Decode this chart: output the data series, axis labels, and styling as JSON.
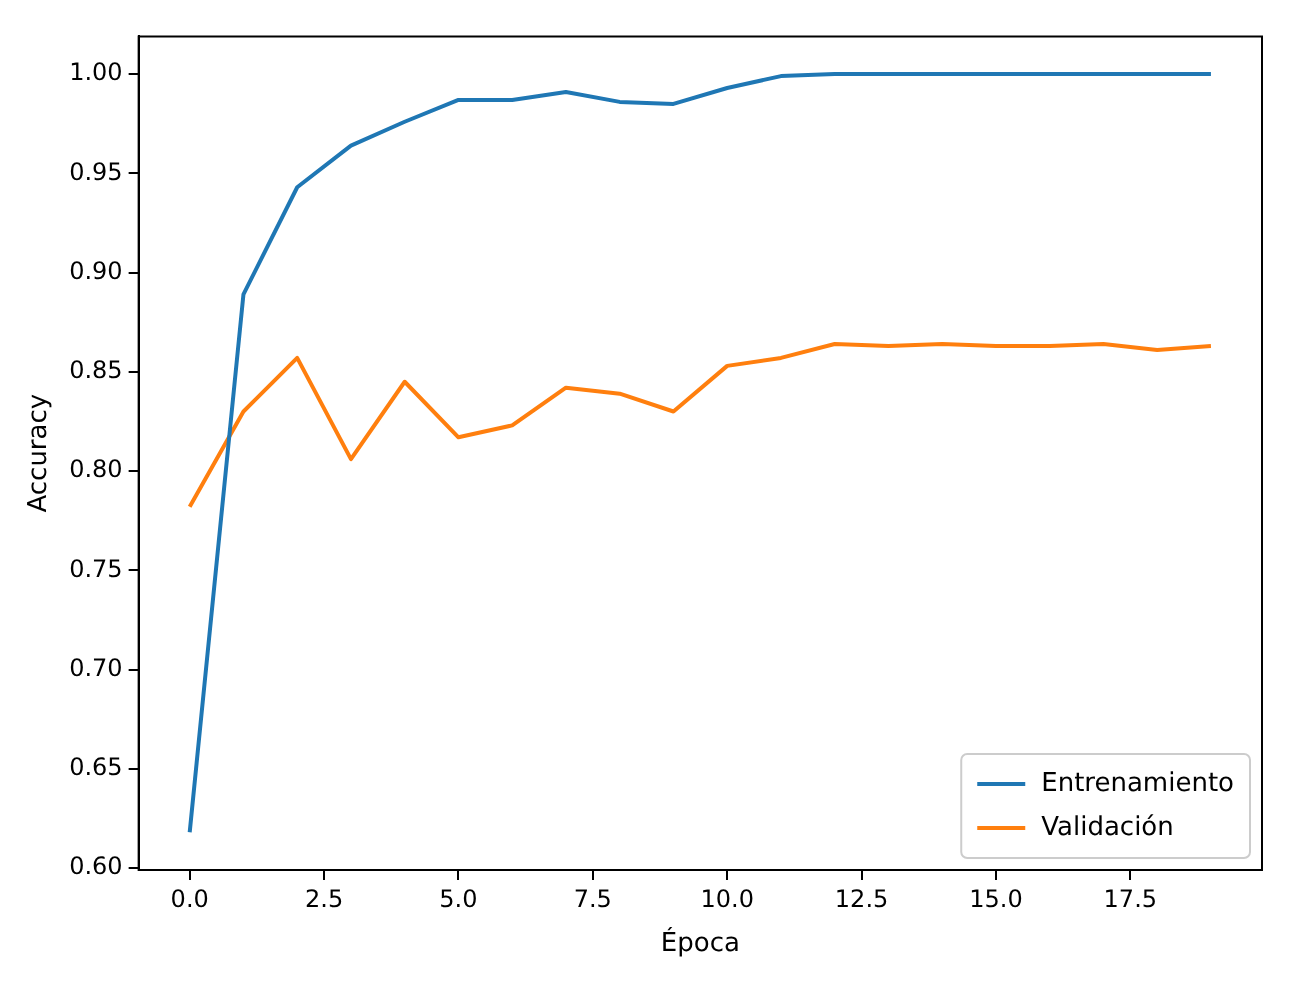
{
  "chart_data": {
    "type": "line",
    "xlabel": "Época",
    "ylabel": "Accuracy",
    "x": [
      0,
      1,
      2,
      3,
      4,
      5,
      6,
      7,
      8,
      9,
      10,
      11,
      12,
      13,
      14,
      15,
      16,
      17,
      18,
      19
    ],
    "series": [
      {
        "name": "Entrenamiento",
        "color": "#1f77b4",
        "values": [
          0.618,
          0.889,
          0.943,
          0.964,
          0.976,
          0.987,
          0.987,
          0.991,
          0.986,
          0.985,
          0.993,
          0.999,
          1.0,
          1.0,
          1.0,
          1.0,
          1.0,
          1.0,
          1.0,
          1.0
        ]
      },
      {
        "name": "Validación",
        "color": "#ff7f0e",
        "values": [
          0.782,
          0.83,
          0.857,
          0.806,
          0.845,
          0.817,
          0.823,
          0.842,
          0.839,
          0.83,
          0.853,
          0.857,
          0.864,
          0.863,
          0.864,
          0.863,
          0.863,
          0.864,
          0.861,
          0.863
        ]
      }
    ],
    "xlim": [
      -0.95,
      19.95
    ],
    "ylim": [
      0.599,
      1.019
    ],
    "xticks": [
      {
        "value": 0,
        "label": "0.0"
      },
      {
        "value": 2.5,
        "label": "2.5"
      },
      {
        "value": 5,
        "label": "5.0"
      },
      {
        "value": 7.5,
        "label": "7.5"
      },
      {
        "value": 10,
        "label": "10.0"
      },
      {
        "value": 12.5,
        "label": "12.5"
      },
      {
        "value": 15,
        "label": "15.0"
      },
      {
        "value": 17.5,
        "label": "17.5"
      }
    ],
    "yticks": [
      {
        "value": 0.6,
        "label": "0.60"
      },
      {
        "value": 0.65,
        "label": "0.65"
      },
      {
        "value": 0.7,
        "label": "0.70"
      },
      {
        "value": 0.75,
        "label": "0.75"
      },
      {
        "value": 0.8,
        "label": "0.80"
      },
      {
        "value": 0.85,
        "label": "0.85"
      },
      {
        "value": 0.9,
        "label": "0.90"
      },
      {
        "value": 0.95,
        "label": "0.95"
      },
      {
        "value": 1.0,
        "label": "1.00"
      }
    ],
    "legend": "bottom right",
    "grid": false,
    "marker": "none",
    "line_style": "solid"
  }
}
